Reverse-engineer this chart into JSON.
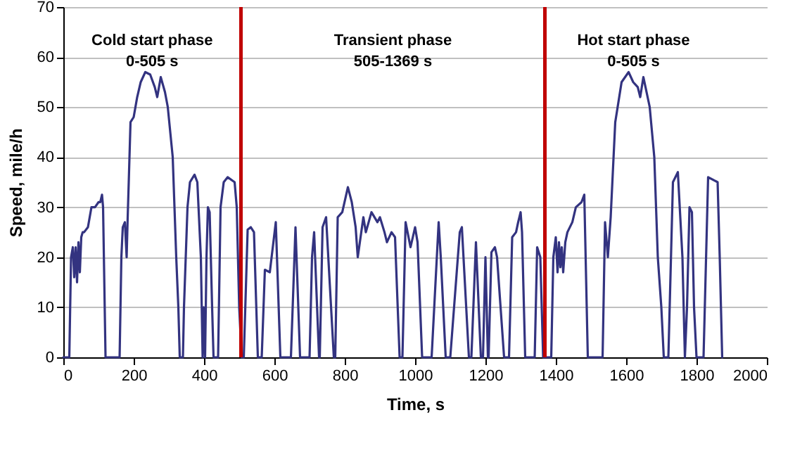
{
  "chart_data": {
    "type": "line",
    "xlabel": "Time, s",
    "ylabel": "Speed, mile/h",
    "xlim": [
      0,
      2000
    ],
    "xticks": [
      0,
      200,
      400,
      600,
      800,
      1000,
      1200,
      1400,
      1600,
      1800,
      2000
    ],
    "ylim": [
      0,
      70
    ],
    "yticks": [
      0,
      10,
      20,
      30,
      40,
      50,
      60,
      70
    ],
    "grid": "y",
    "marker": "none",
    "line_style": "solid",
    "series": [
      {
        "color": "#333380",
        "x": [
          0,
          17,
          22,
          27,
          31,
          35,
          39,
          43,
          47,
          51,
          55,
          59,
          70,
          80,
          90,
          100,
          105,
          110,
          113,
          120,
          160,
          165,
          169,
          175,
          180,
          183,
          186,
          191,
          200,
          210,
          220,
          233,
          247,
          260,
          267,
          277,
          289,
          297,
          311,
          321,
          327,
          331,
          340,
          343,
          353,
          360,
          373,
          381,
          391,
          396,
          399,
          403,
          407,
          411,
          416,
          423,
          427,
          440,
          447,
          456,
          467,
          487,
          493,
          500,
          507,
          513,
          524,
          533,
          542,
          553,
          564,
          573,
          587,
          604,
          617,
          647,
          660,
          673,
          700,
          707,
          713,
          727,
          729,
          737,
          747,
          769,
          773,
          780,
          793,
          809,
          820,
          831,
          837,
          853,
          860,
          876,
          893,
          900,
          913,
          920,
          933,
          943,
          956,
          964,
          973,
          987,
          1000,
          1007,
          1020,
          1047,
          1067,
          1073,
          1087,
          1100,
          1127,
          1133,
          1153,
          1160,
          1173,
          1187,
          1193,
          1200,
          1207,
          1209,
          1217,
          1227,
          1233,
          1253,
          1267,
          1276,
          1287,
          1293,
          1300,
          1304,
          1313,
          1340,
          1347,
          1356,
          1364,
          1387,
          1393,
          1400,
          1405,
          1409,
          1413,
          1417,
          1421,
          1427,
          1433,
          1447,
          1457,
          1473,
          1481,
          1491,
          1533,
          1540,
          1548,
          1556,
          1569,
          1587,
          1607,
          1620,
          1633,
          1640,
          1649,
          1667,
          1680,
          1690,
          1700,
          1707,
          1720,
          1733,
          1747,
          1760,
          1767,
          1773,
          1780,
          1787,
          1793,
          1800,
          1820,
          1833,
          1860,
          1866,
          1873
        ],
        "values": [
          0,
          0,
          20,
          22,
          16,
          22,
          15,
          23,
          17,
          24,
          25,
          25,
          26,
          30,
          30,
          31,
          31,
          32.5,
          30,
          0,
          0,
          20,
          26,
          27,
          20,
          28,
          35,
          47,
          48,
          52,
          55,
          57,
          56.5,
          54,
          52,
          56,
          53,
          50,
          40,
          20,
          10,
          0,
          0,
          10,
          30,
          35,
          36.5,
          35,
          20,
          0,
          10,
          0,
          20,
          30,
          29,
          10,
          0,
          0,
          30,
          35,
          36,
          35,
          30,
          10,
          0,
          0,
          25.5,
          26,
          25,
          0,
          0,
          17.5,
          17,
          27,
          0,
          0,
          26,
          0,
          0,
          20,
          25,
          0,
          0,
          26,
          28,
          0,
          0,
          28,
          29,
          34,
          31,
          26,
          20,
          28,
          25,
          29,
          27,
          28,
          25,
          23,
          25,
          24,
          0,
          0,
          27,
          22,
          26,
          23,
          0,
          0,
          27,
          20,
          0,
          0,
          25,
          26,
          0,
          0,
          23,
          0,
          0,
          20,
          0,
          0,
          21,
          22,
          20,
          0,
          0,
          24,
          25,
          27,
          29,
          25,
          0,
          0,
          22,
          20,
          0,
          0,
          20,
          24,
          17,
          23,
          18,
          22,
          17,
          23,
          25,
          27,
          30,
          31,
          32.5,
          0,
          0,
          27,
          20,
          28,
          47,
          55,
          57,
          55,
          54,
          52,
          56,
          50,
          40,
          20,
          10,
          0,
          0,
          35,
          37,
          20,
          0,
          10,
          30,
          29,
          10,
          0,
          0,
          36,
          35,
          20,
          0
        ]
      }
    ],
    "ref_lines": [
      {
        "axis": "x",
        "value": 505,
        "color": "#c00000"
      },
      {
        "axis": "x",
        "value": 1369,
        "color": "#c00000"
      }
    ],
    "annotations": [
      "Cold start phase\n0-505 s",
      "Transient phase\n505-1369 s",
      "Hot start phase\n0-505 s"
    ]
  }
}
